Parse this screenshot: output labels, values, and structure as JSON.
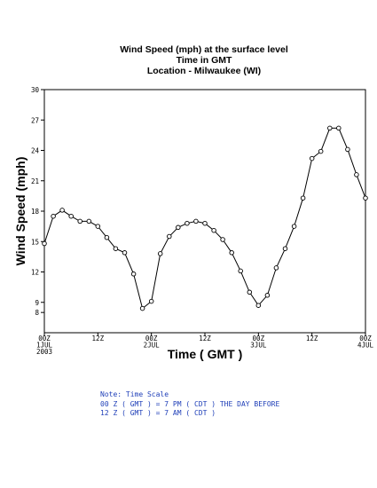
{
  "chart_data": {
    "type": "line",
    "title": "Wind Speed (mph) at the surface level",
    "subtitle_lines": [
      "Time in GMT",
      "Location - Milwaukee (WI)"
    ],
    "xlabel": "Time ( GMT )",
    "ylabel": "Wind Speed (mph)",
    "ylim": [
      6,
      30
    ],
    "yticks": [
      8,
      9,
      12,
      15,
      18,
      21,
      24,
      27,
      30
    ],
    "ytick_labels": [
      "8",
      "9",
      "12",
      "15",
      "18",
      "21",
      "24",
      "27",
      "30"
    ],
    "xlim": [
      0,
      72
    ],
    "xticks": [
      {
        "value": 0,
        "lines": [
          "00Z",
          "1JUL",
          "2003"
        ]
      },
      {
        "value": 12,
        "lines": [
          "12Z"
        ]
      },
      {
        "value": 24,
        "lines": [
          "00Z",
          "2JUL"
        ]
      },
      {
        "value": 36,
        "lines": [
          "12Z"
        ]
      },
      {
        "value": 48,
        "lines": [
          "00Z",
          "3JUL"
        ]
      },
      {
        "value": 60,
        "lines": [
          "12Z"
        ]
      },
      {
        "value": 72,
        "lines": [
          "00Z",
          "4JUL"
        ]
      }
    ],
    "grid": false,
    "series": [
      {
        "x": [
          0,
          2,
          4,
          6,
          8,
          10,
          12,
          14,
          16,
          18,
          20,
          22,
          24,
          26,
          28,
          30,
          32,
          34,
          36,
          38,
          40,
          42,
          44,
          46,
          48,
          50,
          52,
          54,
          56,
          58,
          60,
          62,
          64,
          66,
          68,
          70,
          72
        ],
        "values": [
          14.8,
          17.5,
          18.1,
          17.5,
          17.0,
          17.0,
          16.5,
          15.4,
          14.3,
          13.9,
          11.8,
          8.4,
          9.1,
          13.8,
          15.5,
          16.4,
          16.8,
          17.0,
          16.8,
          16.1,
          15.2,
          13.9,
          12.1,
          10.0,
          8.7,
          9.7,
          12.4,
          14.3,
          16.5,
          19.3,
          23.2,
          23.9,
          26.2,
          26.2,
          24.1,
          21.6,
          19.3
        ]
      }
    ]
  },
  "note": {
    "lines": [
      "Note: Time Scale",
      "00 Z ( GMT ) = 7 PM ( CDT ) THE DAY BEFORE",
      "12 Z ( GMT ) = 7 AM ( CDT )"
    ]
  },
  "colors": {
    "line": "#000000",
    "note": "#1f3fb8"
  }
}
